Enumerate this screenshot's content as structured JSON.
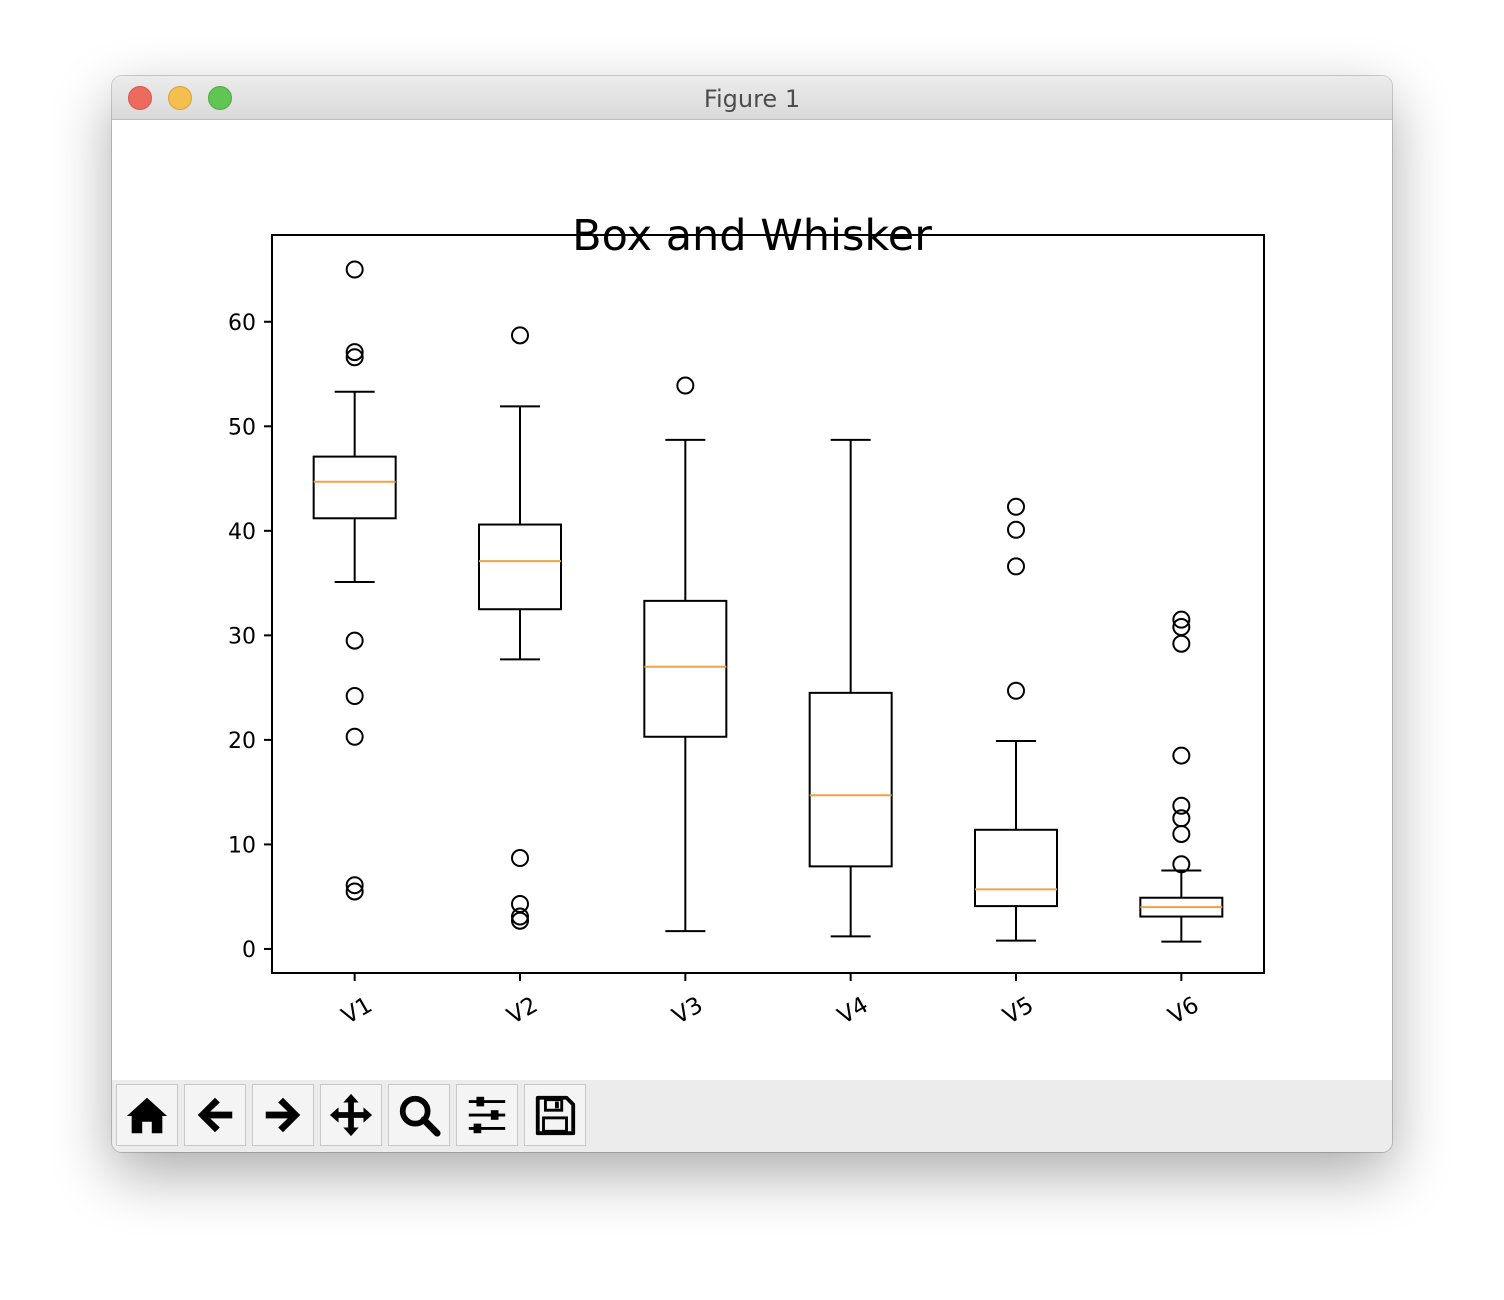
{
  "window": {
    "title": "Figure 1",
    "traffic_lights": [
      "close",
      "minimize",
      "zoom"
    ]
  },
  "toolbar": {
    "tools": [
      {
        "name": "home",
        "icon": "home-icon"
      },
      {
        "name": "back",
        "icon": "arrow-left-icon"
      },
      {
        "name": "forward",
        "icon": "arrow-right-icon"
      },
      {
        "name": "pan",
        "icon": "move-icon"
      },
      {
        "name": "zoom",
        "icon": "magnifier-icon"
      },
      {
        "name": "configure-subplots",
        "icon": "sliders-icon"
      },
      {
        "name": "save",
        "icon": "floppy-icon"
      }
    ]
  },
  "colors": {
    "median": "#f0a04a",
    "box": "#000000",
    "titlebar": "#e3e3e3",
    "toolbar": "#ececec"
  },
  "chart_data": {
    "type": "box",
    "title": "Box and Whisker",
    "xlabel": "",
    "ylabel": "",
    "ylim": [
      -2.3,
      68.3
    ],
    "yticks": [
      0,
      10,
      20,
      30,
      40,
      50,
      60
    ],
    "grid": false,
    "categories": [
      "V1",
      "V2",
      "V3",
      "V4",
      "V5",
      "V6"
    ],
    "boxes": [
      {
        "label": "V1",
        "whisker_low": 35.1,
        "q1": 41.2,
        "median": 44.7,
        "q3": 47.1,
        "whisker_high": 53.3,
        "outliers": [
          65.0,
          57.1,
          56.6,
          29.5,
          24.2,
          20.3,
          6.1,
          5.5
        ]
      },
      {
        "label": "V2",
        "whisker_low": 27.7,
        "q1": 32.5,
        "median": 37.1,
        "q3": 40.6,
        "whisker_high": 51.9,
        "outliers": [
          58.7,
          8.7,
          4.3,
          3.1,
          2.7
        ]
      },
      {
        "label": "V3",
        "whisker_low": 1.7,
        "q1": 20.3,
        "median": 27.0,
        "q3": 33.3,
        "whisker_high": 48.7,
        "outliers": [
          53.9
        ]
      },
      {
        "label": "V4",
        "whisker_low": 1.2,
        "q1": 7.9,
        "median": 14.7,
        "q3": 24.5,
        "whisker_high": 48.7,
        "outliers": []
      },
      {
        "label": "V5",
        "whisker_low": 0.8,
        "q1": 4.1,
        "median": 5.7,
        "q3": 11.4,
        "whisker_high": 19.9,
        "outliers": [
          42.3,
          40.1,
          36.6,
          24.7
        ]
      },
      {
        "label": "V6",
        "whisker_low": 0.7,
        "q1": 3.1,
        "median": 4.0,
        "q3": 4.9,
        "whisker_high": 7.5,
        "outliers": [
          31.5,
          30.8,
          29.2,
          18.5,
          13.7,
          12.5,
          11.0,
          8.1
        ]
      }
    ]
  }
}
